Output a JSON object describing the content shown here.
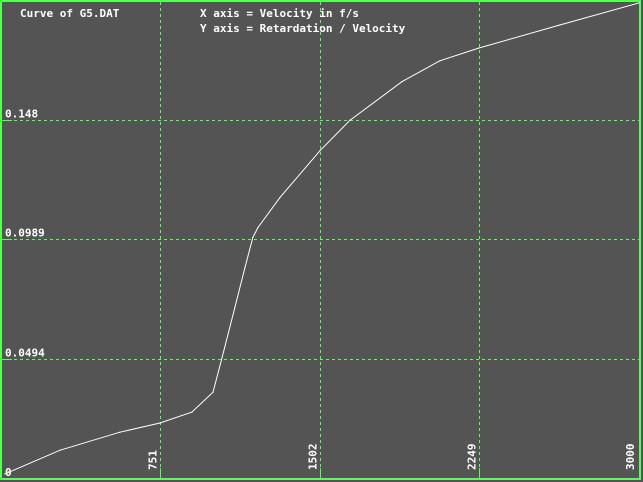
{
  "chart_data": {
    "type": "line",
    "title": "Curve of G5.DAT",
    "xlabel": "X axis = Velocity in f/s",
    "ylabel": "Y axis = Retardation / Velocity",
    "xlim": [
      0,
      3000
    ],
    "ylim": [
      0,
      0.1976
    ],
    "x_ticks": [
      "751",
      "1502",
      "2249",
      "3000"
    ],
    "x_tick_values": [
      751,
      1502,
      2249,
      3000
    ],
    "y_ticks": [
      "0",
      "0.0494",
      "0.0989",
      "0.148"
    ],
    "y_tick_values": [
      0,
      0.0494,
      0.0989,
      0.148
    ],
    "grid": true,
    "colors": {
      "background": "#545454",
      "grid": "#55ff55",
      "curve": "#ffffff",
      "text": "#ffffff"
    },
    "series": [
      {
        "x": [
          23,
          282,
          563,
          751,
          901,
          1000,
          1042,
          1103,
          1150,
          1187,
          1211,
          1314,
          1502,
          1643,
          1887,
          2065,
          2249,
          2628,
          3000
        ],
        "y": [
          0.0021,
          0.0119,
          0.0193,
          0.0231,
          0.0276,
          0.0358,
          0.0498,
          0.0708,
          0.0873,
          0.0996,
          0.1037,
          0.1161,
          0.1354,
          0.148,
          0.1639,
          0.1725,
          0.1778,
          0.1873,
          0.1964
        ]
      }
    ]
  }
}
